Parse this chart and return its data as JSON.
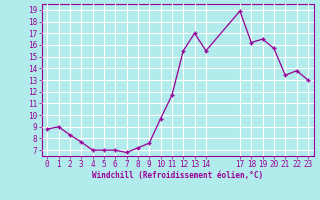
{
  "x": [
    0,
    1,
    2,
    3,
    4,
    5,
    6,
    7,
    8,
    9,
    10,
    11,
    12,
    13,
    14,
    17,
    18,
    19,
    20,
    21,
    22,
    23
  ],
  "y": [
    8.8,
    9.0,
    8.3,
    7.7,
    7.0,
    7.0,
    7.0,
    6.8,
    7.2,
    7.6,
    9.7,
    11.7,
    15.5,
    17.0,
    15.5,
    18.9,
    16.2,
    16.5,
    15.7,
    13.4,
    13.8,
    13.0
  ],
  "line_color": "#990099",
  "marker_color": "#990099",
  "bg_color": "#b2ebeb",
  "grid_color": "#ffffff",
  "xlabel": "Windchill (Refroidissement éolien,°C)",
  "xlabel_color": "#990099",
  "tick_color": "#990099",
  "spine_color": "#990099",
  "ylim": [
    6.5,
    19.5
  ],
  "xlim": [
    -0.5,
    23.5
  ],
  "yticks": [
    7,
    8,
    9,
    10,
    11,
    12,
    13,
    14,
    15,
    16,
    17,
    18,
    19
  ],
  "xticks": [
    0,
    1,
    2,
    3,
    4,
    5,
    6,
    7,
    8,
    9,
    10,
    11,
    12,
    13,
    14,
    17,
    18,
    19,
    20,
    21,
    22,
    23
  ],
  "tick_fontsize": 5.5,
  "xlabel_fontsize": 5.5
}
